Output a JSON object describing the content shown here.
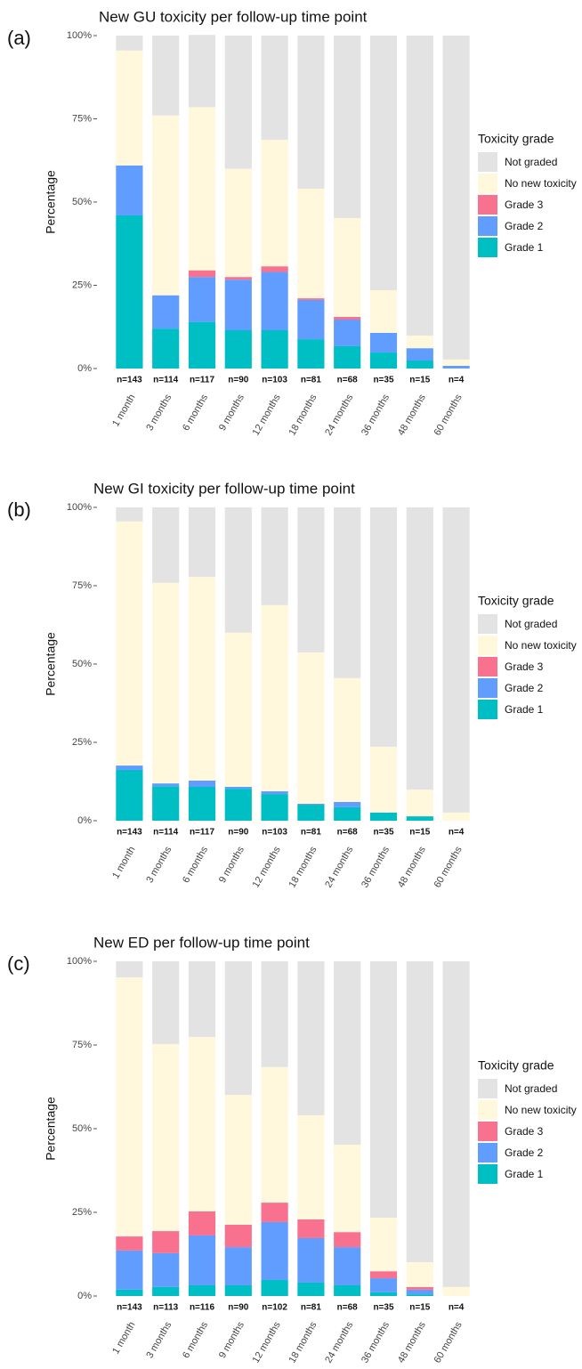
{
  "chart_data": [
    {
      "type": "bar",
      "stacked": true,
      "panel_label": "(a)",
      "title": "New GU toxicity per follow-up time point",
      "y_label": "Percentage",
      "legend_title": "Toxicity grade",
      "categories": [
        "1 month",
        "3 months",
        "6 months",
        "9 months",
        "12 months",
        "18 months",
        "24 months",
        "36 months",
        "48 months",
        "60 months"
      ],
      "n_labels": [
        "n=143",
        "n=114",
        "n=117",
        "n=90",
        "n=103",
        "n=81",
        "n=68",
        "n=35",
        "n=15",
        "n=4"
      ],
      "ylim": [
        0,
        100
      ],
      "yticks": [
        {
          "value": 0,
          "label": "0%"
        },
        {
          "value": 25,
          "label": "25%"
        },
        {
          "value": 50,
          "label": "50%"
        },
        {
          "value": 75,
          "label": "75%"
        },
        {
          "value": 100,
          "label": "100%"
        }
      ],
      "series": [
        {
          "name": "Grade 1",
          "color": "#00bfc4",
          "values": [
            46,
            12,
            14,
            11.5,
            11.5,
            8.8,
            6.7,
            4.8,
            2.4,
            0
          ]
        },
        {
          "name": "Grade 2",
          "color": "#619cff",
          "values": [
            15,
            10,
            13.5,
            15.2,
            17.5,
            11.8,
            8,
            5.9,
            3.7,
            0.8
          ]
        },
        {
          "name": "Grade 3",
          "color": "#f8718f",
          "values": [
            0,
            0,
            2,
            0.8,
            1.7,
            0.5,
            0.8,
            0,
            0,
            0
          ]
        },
        {
          "name": "No new toxicity",
          "color": "#fff8dc",
          "values": [
            34.5,
            54,
            49,
            32.5,
            38,
            32.9,
            29.7,
            12.8,
            3.8,
            1.9
          ]
        },
        {
          "name": "Not graded",
          "color": "#e3e3e3",
          "values": [
            4.5,
            24,
            21.7,
            40,
            31.3,
            46,
            54.8,
            76.5,
            90.1,
            97.3
          ]
        }
      ]
    },
    {
      "type": "bar",
      "stacked": true,
      "panel_label": "(b)",
      "title": "New GI toxicity per follow-up time point",
      "y_label": "Percentage",
      "legend_title": "Toxicity grade",
      "categories": [
        "1 month",
        "3 months",
        "6 months",
        "9 months",
        "12 months",
        "18 months",
        "24 months",
        "36 months",
        "48 months",
        "60 months"
      ],
      "n_labels": [
        "n=143",
        "n=114",
        "n=117",
        "n=90",
        "n=103",
        "n=81",
        "n=68",
        "n=35",
        "n=15",
        "n=4"
      ],
      "ylim": [
        0,
        100
      ],
      "yticks": [
        {
          "value": 0,
          "label": "0%"
        },
        {
          "value": 25,
          "label": "25%"
        },
        {
          "value": 50,
          "label": "50%"
        },
        {
          "value": 75,
          "label": "75%"
        },
        {
          "value": 100,
          "label": "100%"
        }
      ],
      "series": [
        {
          "name": "Grade 1",
          "color": "#00bfc4",
          "values": [
            16.2,
            11,
            10.8,
            10.2,
            8.5,
            5.1,
            4.3,
            2.6,
            1.4,
            0
          ]
        },
        {
          "name": "Grade 2",
          "color": "#619cff",
          "values": [
            1.4,
            0.9,
            2,
            0.6,
            0.9,
            0.3,
            1.7,
            0,
            0,
            0
          ]
        },
        {
          "name": "Grade 3",
          "color": "#f8718f",
          "values": [
            0,
            0,
            0,
            0,
            0,
            0,
            0,
            0,
            0,
            0
          ]
        },
        {
          "name": "No new toxicity",
          "color": "#fff8dc",
          "values": [
            77.9,
            64,
            65,
            49.2,
            59.4,
            48.3,
            39.5,
            21,
            8.5,
            2.6
          ]
        },
        {
          "name": "Not graded",
          "color": "#e3e3e3",
          "values": [
            4.5,
            24.1,
            22.2,
            40,
            31.2,
            46.3,
            54.5,
            76.4,
            90.1,
            97.4
          ]
        }
      ]
    },
    {
      "type": "bar",
      "stacked": true,
      "panel_label": "(c)",
      "title": "New ED per follow-up time point",
      "y_label": "Percentage",
      "legend_title": "Toxicity grade",
      "categories": [
        "1 month",
        "3 months",
        "6 months",
        "9 months",
        "12 months",
        "18 months",
        "24 months",
        "36 months",
        "48 months",
        "60 months"
      ],
      "n_labels": [
        "n=143",
        "n=113",
        "n=116",
        "n=90",
        "n=102",
        "n=81",
        "n=68",
        "n=35",
        "n=15",
        "n=4"
      ],
      "ylim": [
        0,
        100
      ],
      "yticks": [
        {
          "value": 0,
          "label": "0%"
        },
        {
          "value": 25,
          "label": "25%"
        },
        {
          "value": 50,
          "label": "50%"
        },
        {
          "value": 75,
          "label": "75%"
        },
        {
          "value": 100,
          "label": "100%"
        }
      ],
      "series": [
        {
          "name": "Grade 1",
          "color": "#00bfc4",
          "values": [
            1.9,
            2.7,
            3.2,
            3.2,
            4.8,
            4,
            3.2,
            1.1,
            0.5,
            0
          ]
        },
        {
          "name": "Grade 2",
          "color": "#619cff",
          "values": [
            11.7,
            10.1,
            14.9,
            11.4,
            17.3,
            13.3,
            11.4,
            4.2,
            1.4,
            0
          ]
        },
        {
          "name": "Grade 3",
          "color": "#f8718f",
          "values": [
            4.2,
            6.6,
            7.2,
            6.7,
            5.8,
            5.6,
            4.5,
            2.1,
            0.8,
            0
          ]
        },
        {
          "name": "No new toxicity",
          "color": "#fff8dc",
          "values": [
            77.4,
            55.9,
            52.1,
            38.8,
            40.5,
            31.1,
            26.1,
            16,
            7.4,
            2.7
          ]
        },
        {
          "name": "Not graded",
          "color": "#e3e3e3",
          "values": [
            4.8,
            24.7,
            22.6,
            39.9,
            31.6,
            46,
            54.8,
            76.6,
            89.9,
            97.3
          ]
        }
      ]
    }
  ]
}
